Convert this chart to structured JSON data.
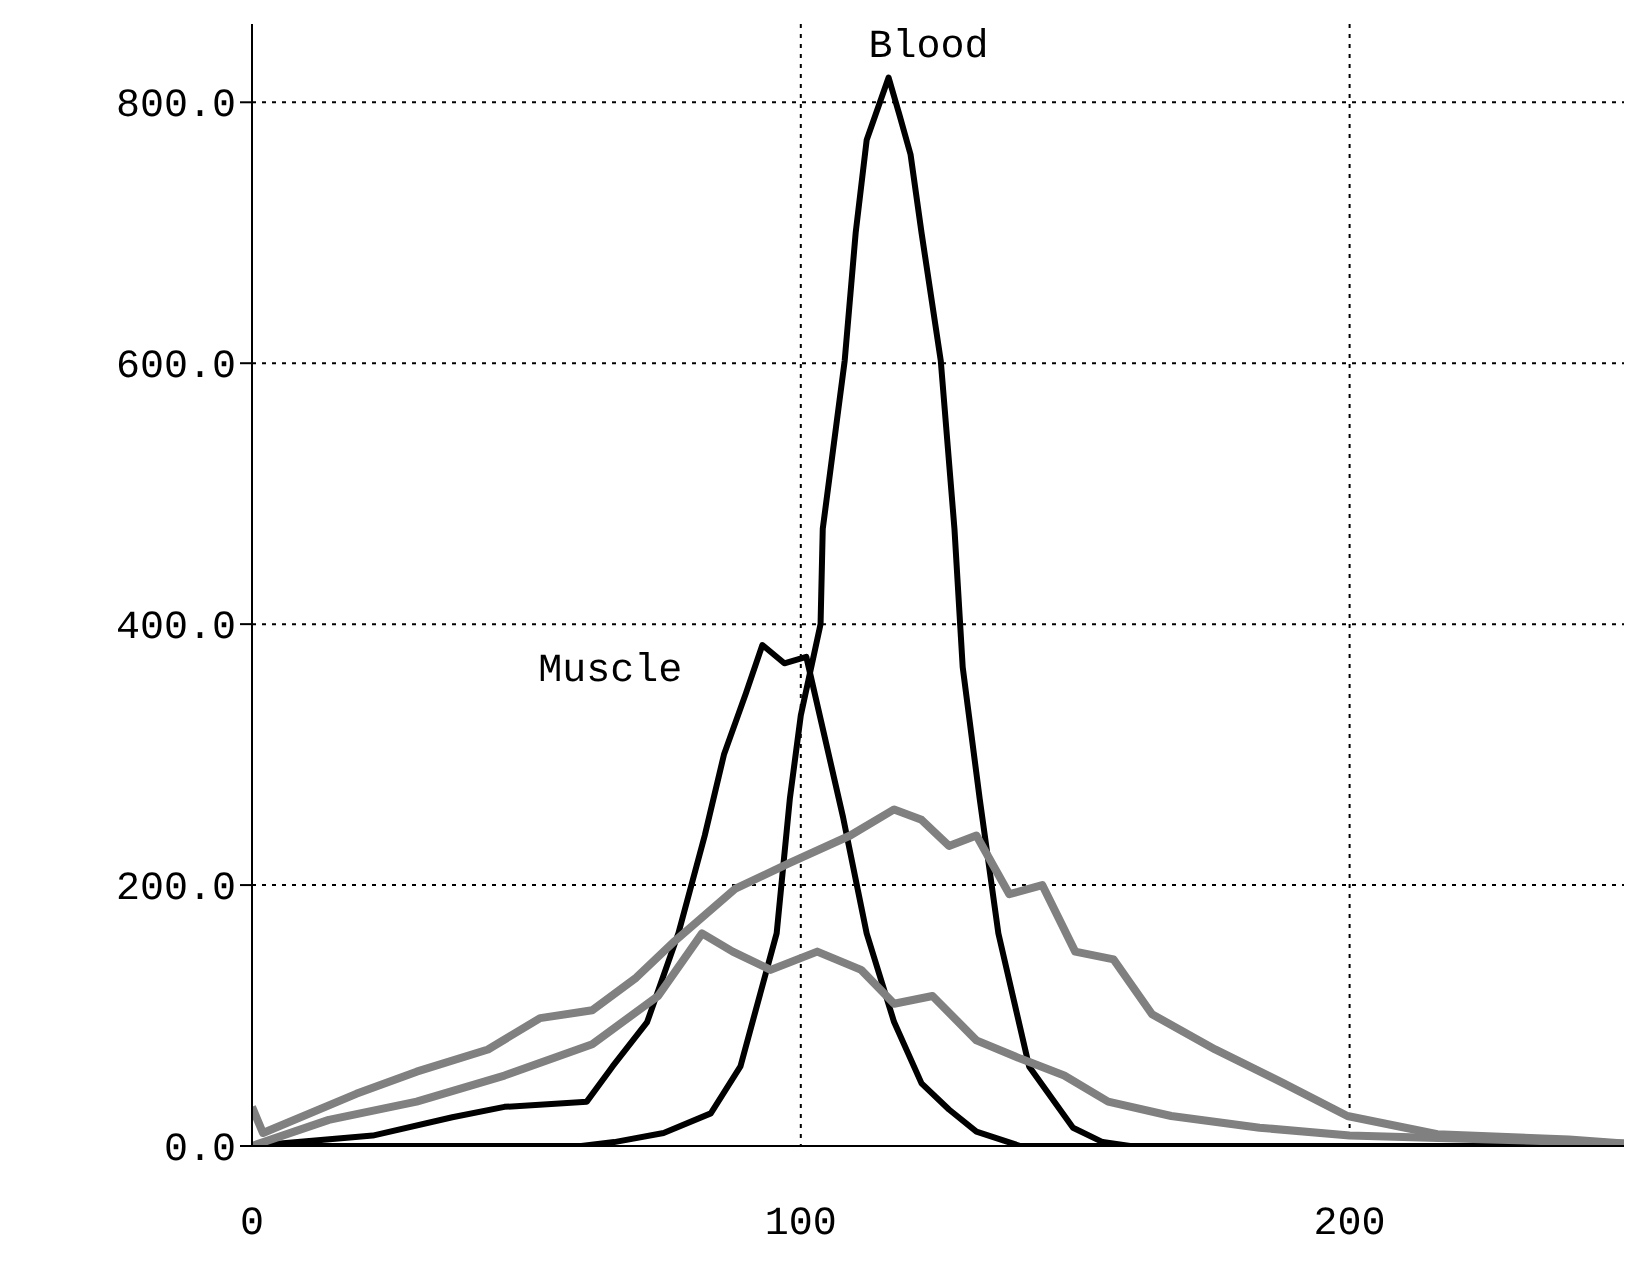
{
  "chart_data": {
    "type": "line",
    "xlim": [
      0,
      250
    ],
    "xticks": [
      0,
      100,
      200
    ],
    "ylim": [
      0,
      860
    ],
    "yticks": [
      {
        "value": 0,
        "label": "0.0"
      },
      {
        "value": 200,
        "label": "200.0"
      },
      {
        "value": 400,
        "label": "400.0"
      },
      {
        "value": 600,
        "label": "600.0"
      },
      {
        "value": 800,
        "label": "800.0"
      }
    ],
    "grid": true,
    "series": [
      {
        "name": "Blood",
        "color": "#000000",
        "x": [
          0,
          60,
          66,
          75,
          83.6,
          89,
          95.6,
          98,
          100,
          103.6,
          104,
          108,
          110,
          112,
          116,
          118,
          120,
          122,
          125.5,
          128,
          129.5,
          132.6,
          136,
          141.6,
          149.6,
          155,
          160,
          250
        ],
        "values": [
          0,
          0,
          3,
          10,
          25,
          61,
          163,
          266,
          330,
          400,
          473,
          602,
          700,
          771,
          819,
          790,
          760,
          700,
          602,
          473,
          367,
          266,
          163,
          61,
          14,
          3,
          0,
          0
        ]
      },
      {
        "name": "Muscle",
        "color": "#000000",
        "x": [
          0,
          22,
          36.5,
          46,
          61,
          65.7,
          72,
          77.7,
          82.5,
          86,
          90,
          93,
          97,
          101,
          104,
          107.7,
          112,
          117,
          122,
          127,
          132,
          140,
          250
        ],
        "values": [
          0,
          8,
          22,
          30,
          34,
          61,
          95,
          163,
          238,
          300,
          347,
          384,
          370,
          375,
          320,
          252,
          163,
          95,
          48,
          28,
          11,
          0,
          0
        ]
      },
      {
        "color": "#808080",
        "x": [
          0,
          2,
          19,
          30,
          43,
          52.5,
          62,
          70,
          77,
          88,
          98,
          109,
          117,
          122,
          127,
          132,
          138,
          144,
          150,
          157,
          164,
          175.5,
          188,
          199.6,
          216,
          240,
          250
        ],
        "values": [
          30,
          10,
          40,
          57,
          74,
          98,
          104,
          129,
          157,
          197,
          217,
          238,
          258,
          250,
          230,
          238,
          193,
          200,
          149,
          143,
          101,
          74,
          48,
          23,
          9,
          5,
          2
        ]
      },
      {
        "color": "#808080",
        "x": [
          0,
          14,
          30,
          46,
          62,
          74,
          82,
          87.6,
          94.5,
          103,
          111,
          117,
          124,
          132,
          140,
          148,
          156,
          167.5,
          183.6,
          200,
          250
        ],
        "values": [
          0,
          20,
          34,
          54,
          78,
          115,
          163,
          149,
          135,
          149,
          135,
          109,
          115,
          81,
          67,
          54,
          34,
          23,
          14,
          8,
          2
        ]
      }
    ]
  }
}
